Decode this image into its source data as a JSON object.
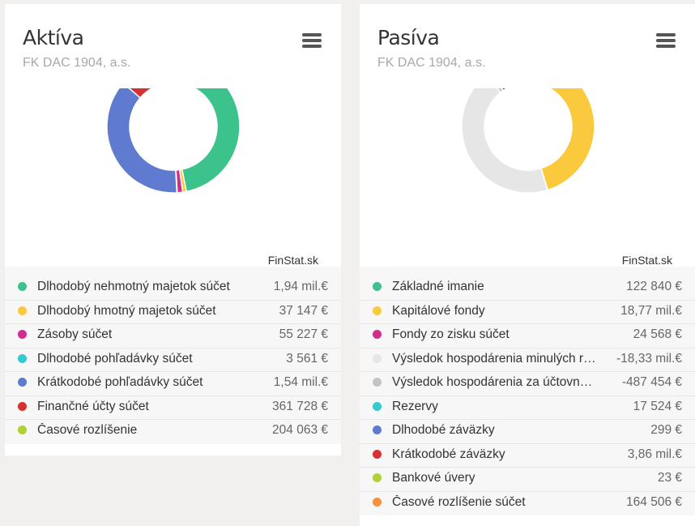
{
  "credit": "FinStat.sk",
  "chart_data": [
    {
      "type": "pie",
      "title": "Aktíva",
      "subtitle": "FK DAC 1904, a.s.",
      "series": [
        {
          "label": "Dlhodobý nehmotný majetok súčet",
          "display": "1,94 mil.€",
          "value": 1940000,
          "color": "#3cc28b"
        },
        {
          "label": "Dlhodobý hmotný majetok súčet",
          "display": "37 147 €",
          "value": 37147,
          "color": "#fbc93d"
        },
        {
          "label": "Zásoby súčet",
          "display": "55 227 €",
          "value": 55227,
          "color": "#d12e8c"
        },
        {
          "label": "Dlhodobé pohľadávky súčet",
          "display": "3 561 €",
          "value": 3561,
          "color": "#33cbcd"
        },
        {
          "label": "Krátkodobé pohľadávky súčet",
          "display": "1,54 mil.€",
          "value": 1540000,
          "color": "#5e7bcf"
        },
        {
          "label": "Finančné účty súčet",
          "display": "361 728 €",
          "value": 361728,
          "color": "#d73030"
        },
        {
          "label": "Časové rozlíšenie",
          "display": "204 063 €",
          "value": 204063,
          "color": "#aed137"
        }
      ]
    },
    {
      "type": "pie",
      "title": "Pasíva",
      "subtitle": "FK DAC 1904, a.s.",
      "series": [
        {
          "label": "Základné imanie",
          "display": "122 840 €",
          "value": 122840,
          "color": "#3cc28b"
        },
        {
          "label": "Kapitálové fondy",
          "display": "18,77 mil.€",
          "value": 18770000,
          "color": "#fbc93d"
        },
        {
          "label": "Fondy zo zisku súčet",
          "display": "24 568 €",
          "value": 24568,
          "color": "#d12e8c"
        },
        {
          "label": "Výsledok hospodárenia minulých rokov",
          "display": "-18,33 mil.€",
          "value": -18330000,
          "color": "#e6e6e6"
        },
        {
          "label": "Výsledok hospodárenia za účtovné obdobie",
          "display": "-487 454 €",
          "value": -487454,
          "color": "#c4c4c4"
        },
        {
          "label": "Rezervy",
          "display": "17 524 €",
          "value": 17524,
          "color": "#33cbcd"
        },
        {
          "label": "Dlhodobé záväzky",
          "display": "299 €",
          "value": 299,
          "color": "#5e7bcf"
        },
        {
          "label": "Krátkodobé záväzky",
          "display": "3,86 mil.€",
          "value": 3860000,
          "color": "#d73030"
        },
        {
          "label": "Bankové úvery",
          "display": "23 €",
          "value": 23,
          "color": "#aed137"
        },
        {
          "label": "Časové rozlíšenie súčet",
          "display": "164 506 €",
          "value": 164506,
          "color": "#f7923b"
        }
      ]
    }
  ]
}
